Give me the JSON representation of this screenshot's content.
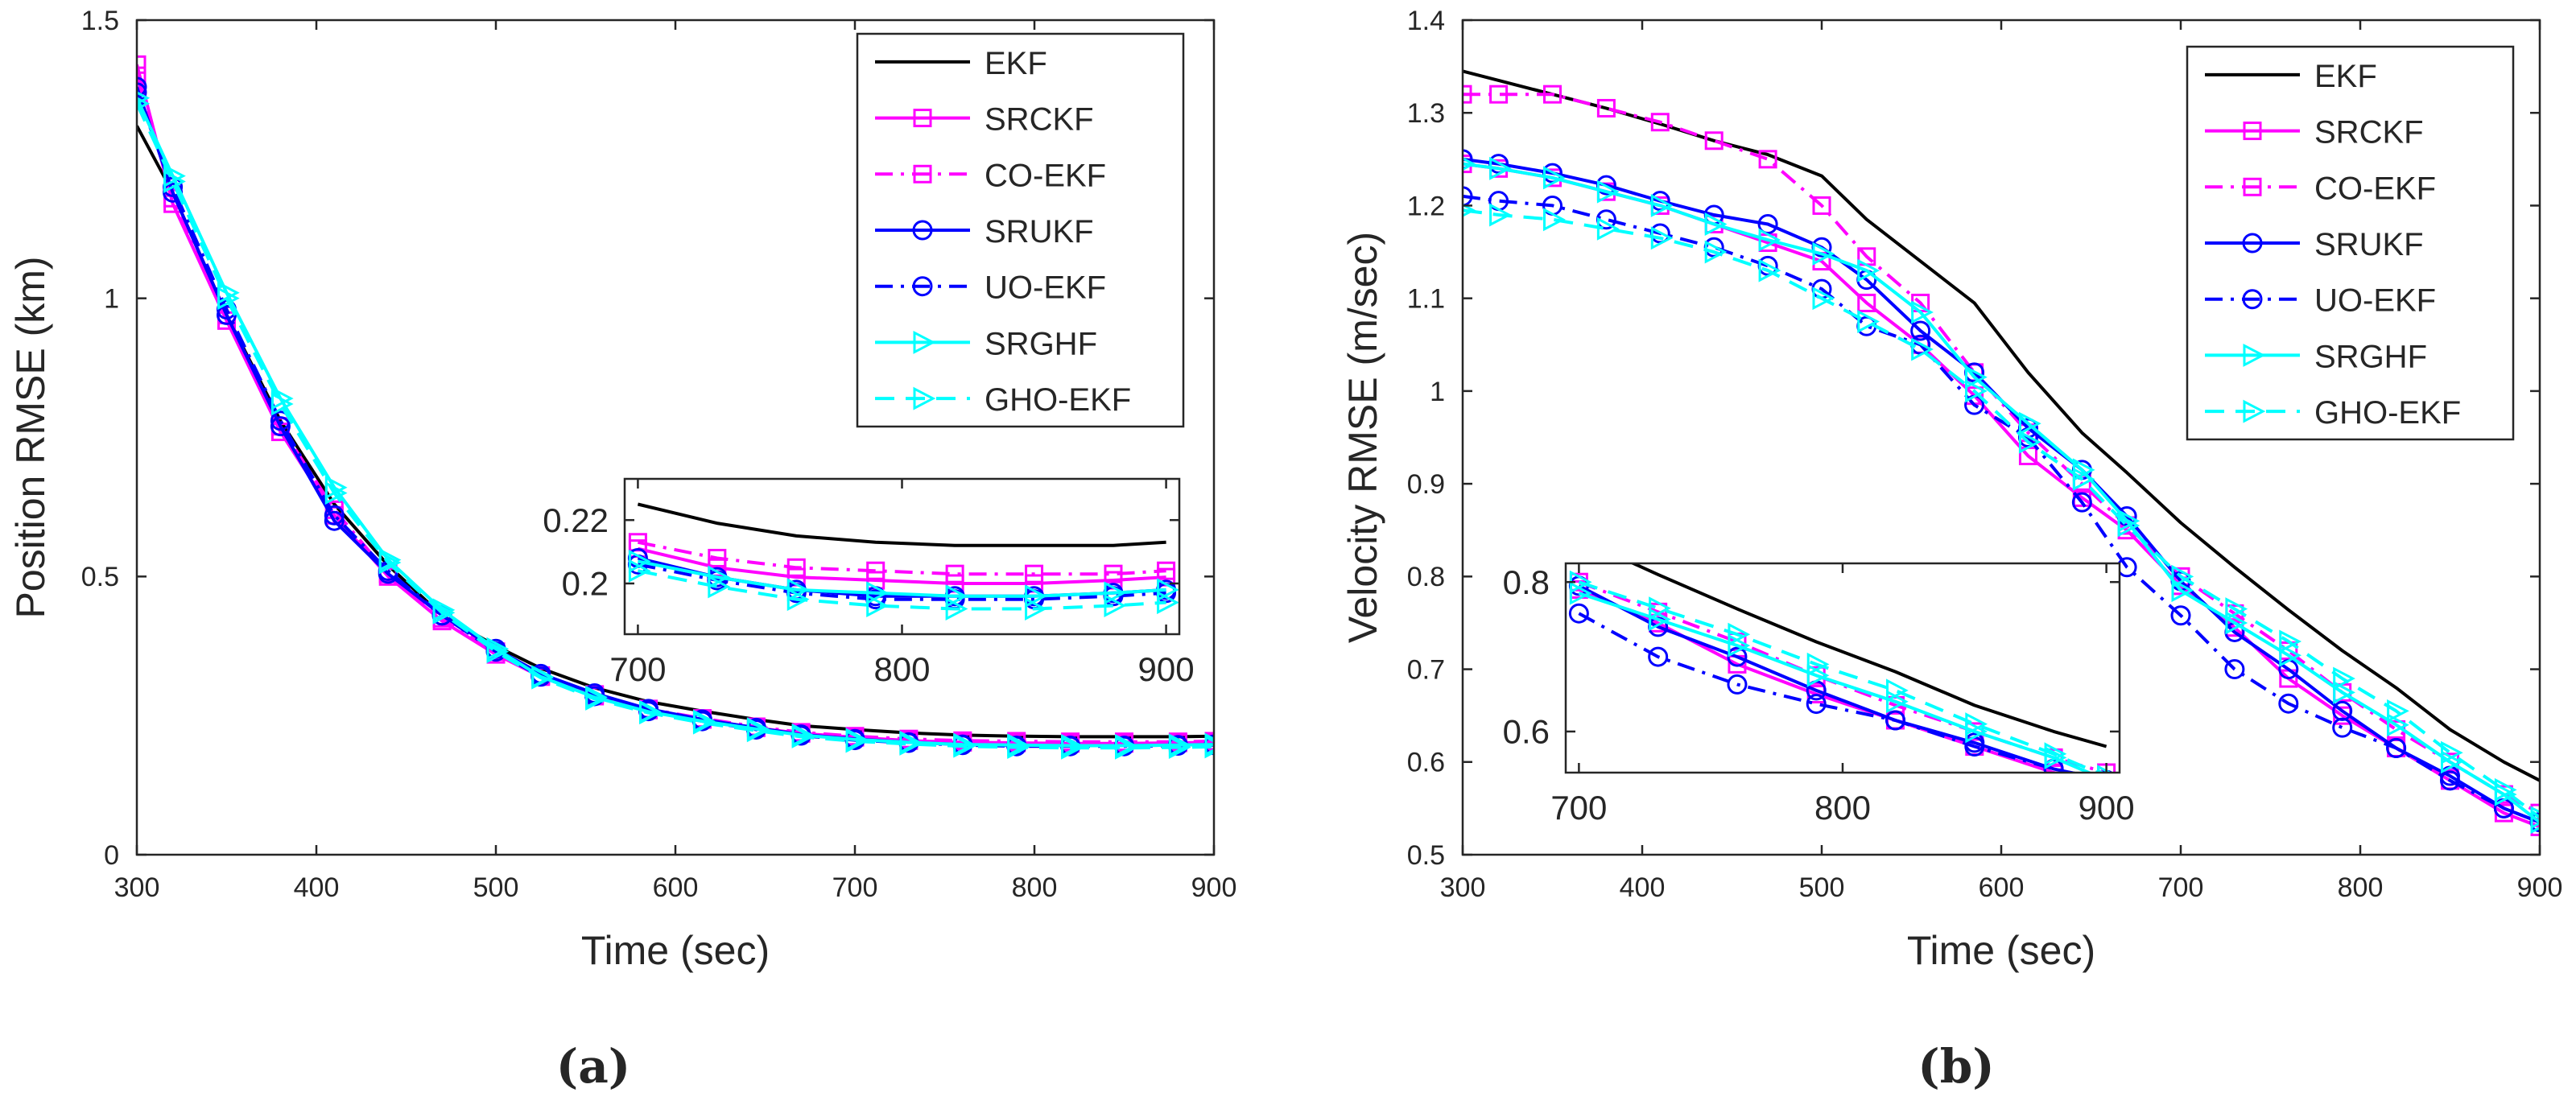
{
  "figure": {
    "panels": [
      "(a)",
      "(b)"
    ]
  },
  "series_styles": [
    {
      "name": "EKF",
      "color": "#000000",
      "dash": "solid",
      "marker": "none"
    },
    {
      "name": "SRCKF",
      "color": "#ff00ff",
      "dash": "solid",
      "marker": "square"
    },
    {
      "name": "CO-EKF",
      "color": "#ff00ff",
      "dash": "dashdot",
      "marker": "square"
    },
    {
      "name": "SRUKF",
      "color": "#0000ff",
      "dash": "solid",
      "marker": "circle"
    },
    {
      "name": "UO-EKF",
      "color": "#0000ff",
      "dash": "dashdot",
      "marker": "circle"
    },
    {
      "name": "SRGHF",
      "color": "#00ffff",
      "dash": "solid",
      "marker": "triangle-right"
    },
    {
      "name": "GHO-EKF",
      "color": "#00ffff",
      "dash": "dashed",
      "marker": "triangle-right"
    }
  ],
  "chart_data": [
    {
      "type": "line",
      "panel": "(a)",
      "title": "",
      "xlabel": "Time (sec)",
      "ylabel": "Position RMSE (km)",
      "xlim": [
        300,
        900
      ],
      "ylim": [
        0,
        1.5
      ],
      "xticks": [
        "300",
        "400",
        "500",
        "600",
        "700",
        "800",
        "900"
      ],
      "yticks": [
        "0",
        "0.5",
        "1",
        "1.5"
      ],
      "legend": "top-right",
      "x": [
        300,
        320,
        350,
        380,
        410,
        440,
        470,
        500,
        525,
        555,
        585,
        615,
        645,
        670,
        700,
        730,
        760,
        790,
        820,
        850,
        880,
        900
      ],
      "series": [
        {
          "name": "EKF",
          "values": [
            1.31,
            1.19,
            0.97,
            0.78,
            0.63,
            0.52,
            0.43,
            0.375,
            0.335,
            0.3,
            0.275,
            0.258,
            0.243,
            0.232,
            0.225,
            0.219,
            0.215,
            0.213,
            0.212,
            0.212,
            0.212,
            0.213
          ]
        },
        {
          "name": "SRCKF",
          "values": [
            1.42,
            1.17,
            0.96,
            0.76,
            0.61,
            0.5,
            0.42,
            0.36,
            0.32,
            0.285,
            0.26,
            0.243,
            0.228,
            0.218,
            0.211,
            0.205,
            0.202,
            0.201,
            0.2,
            0.2,
            0.201,
            0.202
          ]
        },
        {
          "name": "CO-EKF",
          "values": [
            1.4,
            1.18,
            0.97,
            0.77,
            0.62,
            0.505,
            0.425,
            0.365,
            0.322,
            0.288,
            0.262,
            0.245,
            0.23,
            0.22,
            0.213,
            0.208,
            0.205,
            0.204,
            0.203,
            0.203,
            0.203,
            0.204
          ]
        },
        {
          "name": "SRUKF",
          "values": [
            1.38,
            1.19,
            0.97,
            0.77,
            0.6,
            0.505,
            0.43,
            0.37,
            0.325,
            0.29,
            0.262,
            0.243,
            0.228,
            0.216,
            0.208,
            0.202,
            0.198,
            0.196,
            0.196,
            0.196,
            0.197,
            0.198
          ]
        },
        {
          "name": "UO-EKF",
          "values": [
            1.37,
            1.2,
            0.98,
            0.78,
            0.61,
            0.51,
            0.43,
            0.365,
            0.32,
            0.285,
            0.258,
            0.24,
            0.225,
            0.214,
            0.206,
            0.201,
            0.197,
            0.195,
            0.195,
            0.195,
            0.196,
            0.197
          ]
        },
        {
          "name": "SRGHF",
          "values": [
            1.36,
            1.22,
            1.01,
            0.82,
            0.66,
            0.53,
            0.44,
            0.37,
            0.32,
            0.283,
            0.257,
            0.24,
            0.226,
            0.215,
            0.207,
            0.202,
            0.198,
            0.197,
            0.196,
            0.196,
            0.197,
            0.198
          ]
        },
        {
          "name": "GHO-EKF",
          "values": [
            1.35,
            1.21,
            1.0,
            0.81,
            0.65,
            0.525,
            0.435,
            0.365,
            0.318,
            0.28,
            0.255,
            0.237,
            0.223,
            0.212,
            0.204,
            0.199,
            0.195,
            0.193,
            0.192,
            0.192,
            0.193,
            0.194
          ]
        }
      ],
      "inset": {
        "xlim": [
          695,
          905
        ],
        "ylim": [
          0.184,
          0.233
        ],
        "xticks": [
          "700",
          "800",
          "900"
        ],
        "yticks": [
          "0.2",
          "0.22"
        ]
      }
    },
    {
      "type": "line",
      "panel": "(b)",
      "title": "",
      "xlabel": "Time (sec)",
      "ylabel": "Velocity RMSE (m/sec)",
      "xlim": [
        300,
        900
      ],
      "ylim": [
        0.5,
        1.4
      ],
      "xticks": [
        "300",
        "400",
        "500",
        "600",
        "700",
        "800",
        "900"
      ],
      "yticks": [
        "0.5",
        "0.6",
        "0.7",
        "0.8",
        "0.9",
        "1",
        "1.1",
        "1.2",
        "1.3",
        "1.4"
      ],
      "legend": "top-right",
      "x": [
        300,
        320,
        350,
        380,
        410,
        440,
        470,
        500,
        525,
        555,
        585,
        615,
        645,
        670,
        700,
        730,
        760,
        790,
        820,
        850,
        880,
        900
      ],
      "series": [
        {
          "name": "EKF",
          "values": [
            1.345,
            1.335,
            1.32,
            1.305,
            1.288,
            1.27,
            1.255,
            1.232,
            1.185,
            1.14,
            1.095,
            1.02,
            0.955,
            0.912,
            0.858,
            0.81,
            0.764,
            0.72,
            0.68,
            0.635,
            0.6,
            0.58
          ]
        },
        {
          "name": "SRCKF",
          "values": [
            1.245,
            1.24,
            1.23,
            1.215,
            1.2,
            1.18,
            1.16,
            1.14,
            1.095,
            1.05,
            0.995,
            0.93,
            0.885,
            0.85,
            0.79,
            0.745,
            0.69,
            0.65,
            0.615,
            0.58,
            0.545,
            0.53
          ]
        },
        {
          "name": "CO-EKF",
          "values": [
            1.32,
            1.32,
            1.32,
            1.305,
            1.29,
            1.27,
            1.25,
            1.2,
            1.145,
            1.095,
            1.02,
            0.955,
            0.9,
            0.855,
            0.8,
            0.76,
            0.72,
            0.675,
            0.635,
            0.6,
            0.565,
            0.545
          ]
        },
        {
          "name": "SRUKF",
          "values": [
            1.25,
            1.245,
            1.235,
            1.222,
            1.205,
            1.19,
            1.18,
            1.155,
            1.12,
            1.065,
            1.02,
            0.96,
            0.915,
            0.865,
            0.795,
            0.74,
            0.7,
            0.655,
            0.615,
            0.585,
            0.55,
            0.535
          ]
        },
        {
          "name": "UO-EKF",
          "values": [
            1.21,
            1.205,
            1.2,
            1.185,
            1.17,
            1.155,
            1.135,
            1.11,
            1.07,
            1.05,
            0.985,
            0.95,
            0.88,
            0.81,
            0.758,
            0.7,
            0.663,
            0.637,
            0.615,
            0.58,
            0.55,
            0.535
          ]
        },
        {
          "name": "SRGHF",
          "values": [
            1.245,
            1.24,
            1.23,
            1.215,
            1.2,
            1.18,
            1.163,
            1.148,
            1.13,
            1.085,
            1.015,
            0.965,
            0.915,
            0.86,
            0.785,
            0.75,
            0.715,
            0.675,
            0.64,
            0.6,
            0.565,
            0.535
          ]
        },
        {
          "name": "GHO-EKF",
          "values": [
            1.195,
            1.19,
            1.185,
            1.175,
            1.165,
            1.15,
            1.13,
            1.1,
            1.075,
            1.045,
            1.0,
            0.945,
            0.905,
            0.855,
            0.8,
            0.765,
            0.73,
            0.69,
            0.655,
            0.61,
            0.57,
            0.54
          ]
        }
      ],
      "inset": {
        "xlim": [
          695,
          905
        ],
        "ylim": [
          0.545,
          0.825
        ],
        "xticks": [
          "700",
          "800",
          "900"
        ],
        "yticks": [
          "0.6",
          "0.8"
        ]
      }
    }
  ]
}
